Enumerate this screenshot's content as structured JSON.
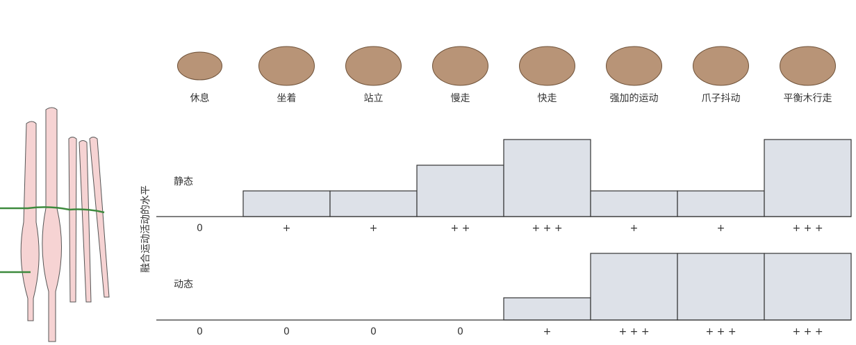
{
  "chart_data": {
    "type": "bar",
    "y_label": "融合运动活动的水平",
    "categories": [
      "休息",
      "坐着",
      "站立",
      "慢走",
      "快走",
      "强加的运动",
      "爪子抖动",
      "平衡木行走"
    ],
    "color": "#dde1e8",
    "ylim": [
      0,
      3
    ],
    "series": [
      {
        "name": "静态",
        "values": [
          0,
          1,
          1,
          2,
          3,
          1,
          1,
          3
        ],
        "value_labels": [
          "0",
          "+",
          "+",
          "+ +",
          "+ + +",
          "+",
          "+",
          "+ + +"
        ]
      },
      {
        "name": "动态",
        "values": [
          0,
          0,
          0,
          0,
          1,
          3,
          3,
          3
        ],
        "value_labels": [
          "0",
          "0",
          "0",
          "0",
          "+",
          "+ + +",
          "+ + +",
          "+ + +"
        ]
      }
    ]
  }
}
